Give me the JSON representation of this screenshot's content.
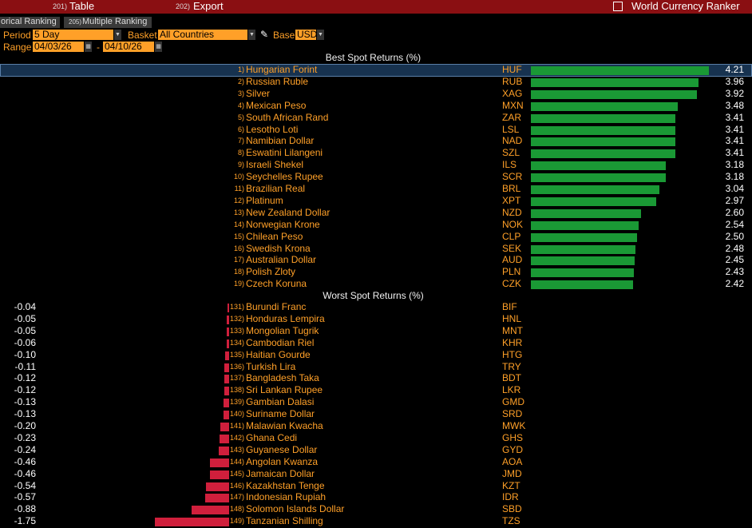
{
  "toolbar": {
    "buttons": [
      {
        "key": "201)",
        "label": "Table"
      },
      {
        "key": "202)",
        "label": "Export"
      }
    ],
    "title": "World Currency Ranker"
  },
  "tabs": [
    {
      "label": "orical Ranking"
    },
    {
      "key": "205)",
      "label": "Multiple Ranking"
    }
  ],
  "controls": {
    "period_label": "Period",
    "period": "5 Day",
    "basket_label": "Basket",
    "basket": "All Countries",
    "base_label": "Base",
    "base": "USD",
    "range_label": "Range",
    "range_from": "04/03/26",
    "range_sep": "-",
    "range_to": "04/10/26"
  },
  "best": {
    "title": "Best Spot Returns (%)",
    "rows": [
      {
        "rank": "1)",
        "name": "Hungarian Forint",
        "code": "HUF"
      },
      {
        "rank": "2)",
        "name": "Russian Ruble",
        "code": "RUB"
      },
      {
        "rank": "3)",
        "name": "Silver",
        "code": "XAG"
      },
      {
        "rank": "4)",
        "name": "Mexican Peso",
        "code": "MXN"
      },
      {
        "rank": "5)",
        "name": "South African Rand",
        "code": "ZAR"
      },
      {
        "rank": "6)",
        "name": "Lesotho Loti",
        "code": "LSL"
      },
      {
        "rank": "7)",
        "name": "Namibian Dollar",
        "code": "NAD"
      },
      {
        "rank": "8)",
        "name": "Eswatini Lilangeni",
        "code": "SZL"
      },
      {
        "rank": "9)",
        "name": "Israeli Shekel",
        "code": "ILS"
      },
      {
        "rank": "10)",
        "name": "Seychelles Rupee",
        "code": "SCR"
      },
      {
        "rank": "11)",
        "name": "Brazilian Real",
        "code": "BRL"
      },
      {
        "rank": "12)",
        "name": "Platinum",
        "code": "XPT"
      },
      {
        "rank": "13)",
        "name": "New Zealand Dollar",
        "code": "NZD"
      },
      {
        "rank": "14)",
        "name": "Norwegian Krone",
        "code": "NOK"
      },
      {
        "rank": "15)",
        "name": "Chilean Peso",
        "code": "CLP"
      },
      {
        "rank": "16)",
        "name": "Swedish Krona",
        "code": "SEK"
      },
      {
        "rank": "17)",
        "name": "Australian Dollar",
        "code": "AUD"
      },
      {
        "rank": "18)",
        "name": "Polish Zloty",
        "code": "PLN"
      },
      {
        "rank": "19)",
        "name": "Czech Koruna",
        "code": "CZK"
      }
    ],
    "values": [
      4.21,
      3.96,
      3.92,
      3.48,
      3.41,
      3.41,
      3.41,
      3.41,
      3.18,
      3.18,
      3.04,
      2.97,
      2.6,
      2.54,
      2.5,
      2.48,
      2.45,
      2.43,
      2.42
    ],
    "value_labels": [
      "4.21",
      "3.96",
      "3.92",
      "3.48",
      "3.41",
      "3.41",
      "3.41",
      "3.41",
      "3.18",
      "3.18",
      "3.04",
      "2.97",
      "2.60",
      "2.54",
      "2.50",
      "2.48",
      "2.45",
      "2.43",
      "2.42"
    ]
  },
  "worst": {
    "title": "Worst Spot Returns (%)",
    "rows": [
      {
        "rank": "131)",
        "name": "Burundi Franc",
        "code": "BIF"
      },
      {
        "rank": "132)",
        "name": "Honduras Lempira",
        "code": "HNL"
      },
      {
        "rank": "133)",
        "name": "Mongolian Tugrik",
        "code": "MNT"
      },
      {
        "rank": "134)",
        "name": "Cambodian Riel",
        "code": "KHR"
      },
      {
        "rank": "135)",
        "name": "Haitian Gourde",
        "code": "HTG"
      },
      {
        "rank": "136)",
        "name": "Turkish Lira",
        "code": "TRY"
      },
      {
        "rank": "137)",
        "name": "Bangladesh Taka",
        "code": "BDT"
      },
      {
        "rank": "138)",
        "name": "Sri Lankan Rupee",
        "code": "LKR"
      },
      {
        "rank": "139)",
        "name": "Gambian Dalasi",
        "code": "GMD"
      },
      {
        "rank": "140)",
        "name": "Suriname Dollar",
        "code": "SRD"
      },
      {
        "rank": "141)",
        "name": "Malawian Kwacha",
        "code": "MWK"
      },
      {
        "rank": "142)",
        "name": "Ghana Cedi",
        "code": "GHS"
      },
      {
        "rank": "143)",
        "name": "Guyanese Dollar",
        "code": "GYD"
      },
      {
        "rank": "144)",
        "name": "Angolan Kwanza",
        "code": "AOA"
      },
      {
        "rank": "145)",
        "name": "Jamaican Dollar",
        "code": "JMD"
      },
      {
        "rank": "146)",
        "name": "Kazakhstan Tenge",
        "code": "KZT"
      },
      {
        "rank": "147)",
        "name": "Indonesian Rupiah",
        "code": "IDR"
      },
      {
        "rank": "148)",
        "name": "Solomon Islands Dollar",
        "code": "SBD"
      },
      {
        "rank": "149)",
        "name": "Tanzanian Shilling",
        "code": "TZS"
      }
    ],
    "values": [
      -0.04,
      -0.05,
      -0.05,
      -0.06,
      -0.1,
      -0.11,
      -0.12,
      -0.12,
      -0.13,
      -0.13,
      -0.2,
      -0.23,
      -0.24,
      -0.46,
      -0.46,
      -0.54,
      -0.57,
      -0.88,
      -1.75
    ],
    "value_labels": [
      "-0.04",
      "-0.05",
      "-0.05",
      "-0.06",
      "-0.10",
      "-0.11",
      "-0.12",
      "-0.12",
      "-0.13",
      "-0.13",
      "-0.20",
      "-0.23",
      "-0.24",
      "-0.46",
      "-0.46",
      "-0.54",
      "-0.57",
      "-0.88",
      "-1.75"
    ]
  }
}
